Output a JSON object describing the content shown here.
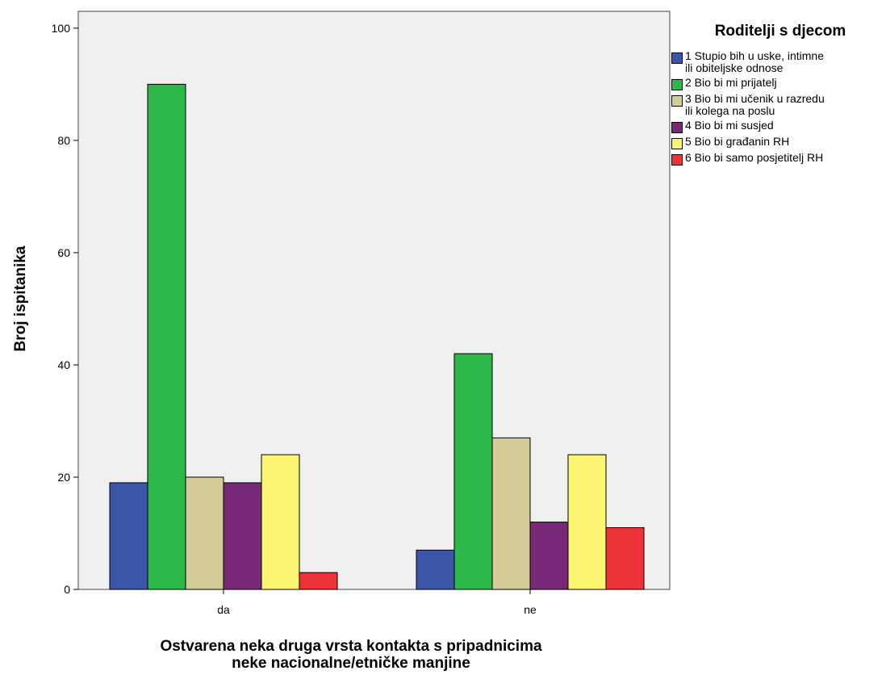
{
  "chart_data": {
    "type": "bar",
    "categories": [
      "da",
      "ne"
    ],
    "xlabel_lines": [
      "Ostvarena neka druga vrsta kontakta s pripadnicima",
      "neke nacionalne/etničke manjine"
    ],
    "ylabel": "Broj ispitanika",
    "ylim": [
      0,
      103
    ],
    "yticks": [
      0,
      20,
      40,
      60,
      80,
      100
    ],
    "legend": {
      "title": "Roditelji s djecom",
      "placement": "right"
    },
    "series": [
      {
        "name": "1 Stupio bih u uske, intimne ili obiteljske odnose",
        "name_lines": [
          "1 Stupio bih u uske, intimne",
          "ili obiteljske odnose"
        ],
        "color": "#3b55a9",
        "values": [
          19,
          7
        ]
      },
      {
        "name": "2 Bio bi mi prijatelj",
        "name_lines": [
          "2 Bio bi mi prijatelj"
        ],
        "color": "#2fb84a",
        "values": [
          90,
          42
        ]
      },
      {
        "name": "3 Bio bi mi učenik u razredu ili kolega na poslu",
        "name_lines": [
          "3 Bio bi mi učenik u razredu",
          "ili kolega na poslu"
        ],
        "color": "#d4cc96",
        "values": [
          20,
          27
        ]
      },
      {
        "name": "4 Bio bi mi susjed",
        "name_lines": [
          "4 Bio bi mi susjed"
        ],
        "color": "#772876",
        "values": [
          19,
          12
        ]
      },
      {
        "name": "5 Bio bi građanin RH",
        "name_lines": [
          "5 Bio bi građanin RH"
        ],
        "color": "#fbf571",
        "values": [
          24,
          24
        ]
      },
      {
        "name": "6 Bio bi samo posjetitelj RH",
        "name_lines": [
          "6 Bio bi samo posjetitelj RH"
        ],
        "color": "#ee3338",
        "values": [
          3,
          11
        ]
      }
    ],
    "grid": false,
    "plot_background": "#f0f0f0"
  }
}
